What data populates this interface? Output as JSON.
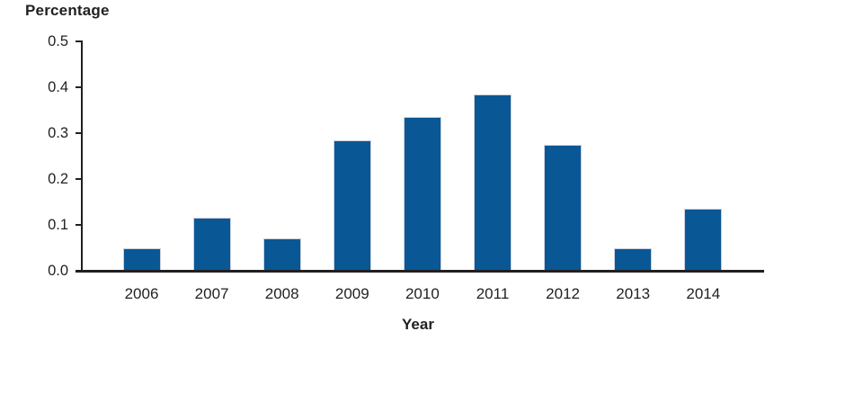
{
  "chart_data": {
    "type": "bar",
    "title": "",
    "xlabel": "Year",
    "ylabel": "Percentage",
    "categories": [
      "2006",
      "2007",
      "2008",
      "2009",
      "2010",
      "2011",
      "2012",
      "2013",
      "2014"
    ],
    "values": [
      0.05,
      0.115,
      0.07,
      0.285,
      0.335,
      0.385,
      0.275,
      0.05,
      0.135
    ],
    "ylim": [
      0,
      0.5
    ],
    "yticks": [
      0.0,
      0.1,
      0.2,
      0.3,
      0.4,
      0.5
    ],
    "ytick_labels": [
      "0.0",
      "0.1",
      "0.2",
      "0.3",
      "0.4",
      "0.5"
    ],
    "grid": false,
    "legend": "none",
    "colors": {
      "bar_fill": "#0a5795",
      "bar_border": "#ccd0de",
      "axis": "#231f20",
      "text": "#231f20",
      "background": "#ffffff"
    }
  }
}
